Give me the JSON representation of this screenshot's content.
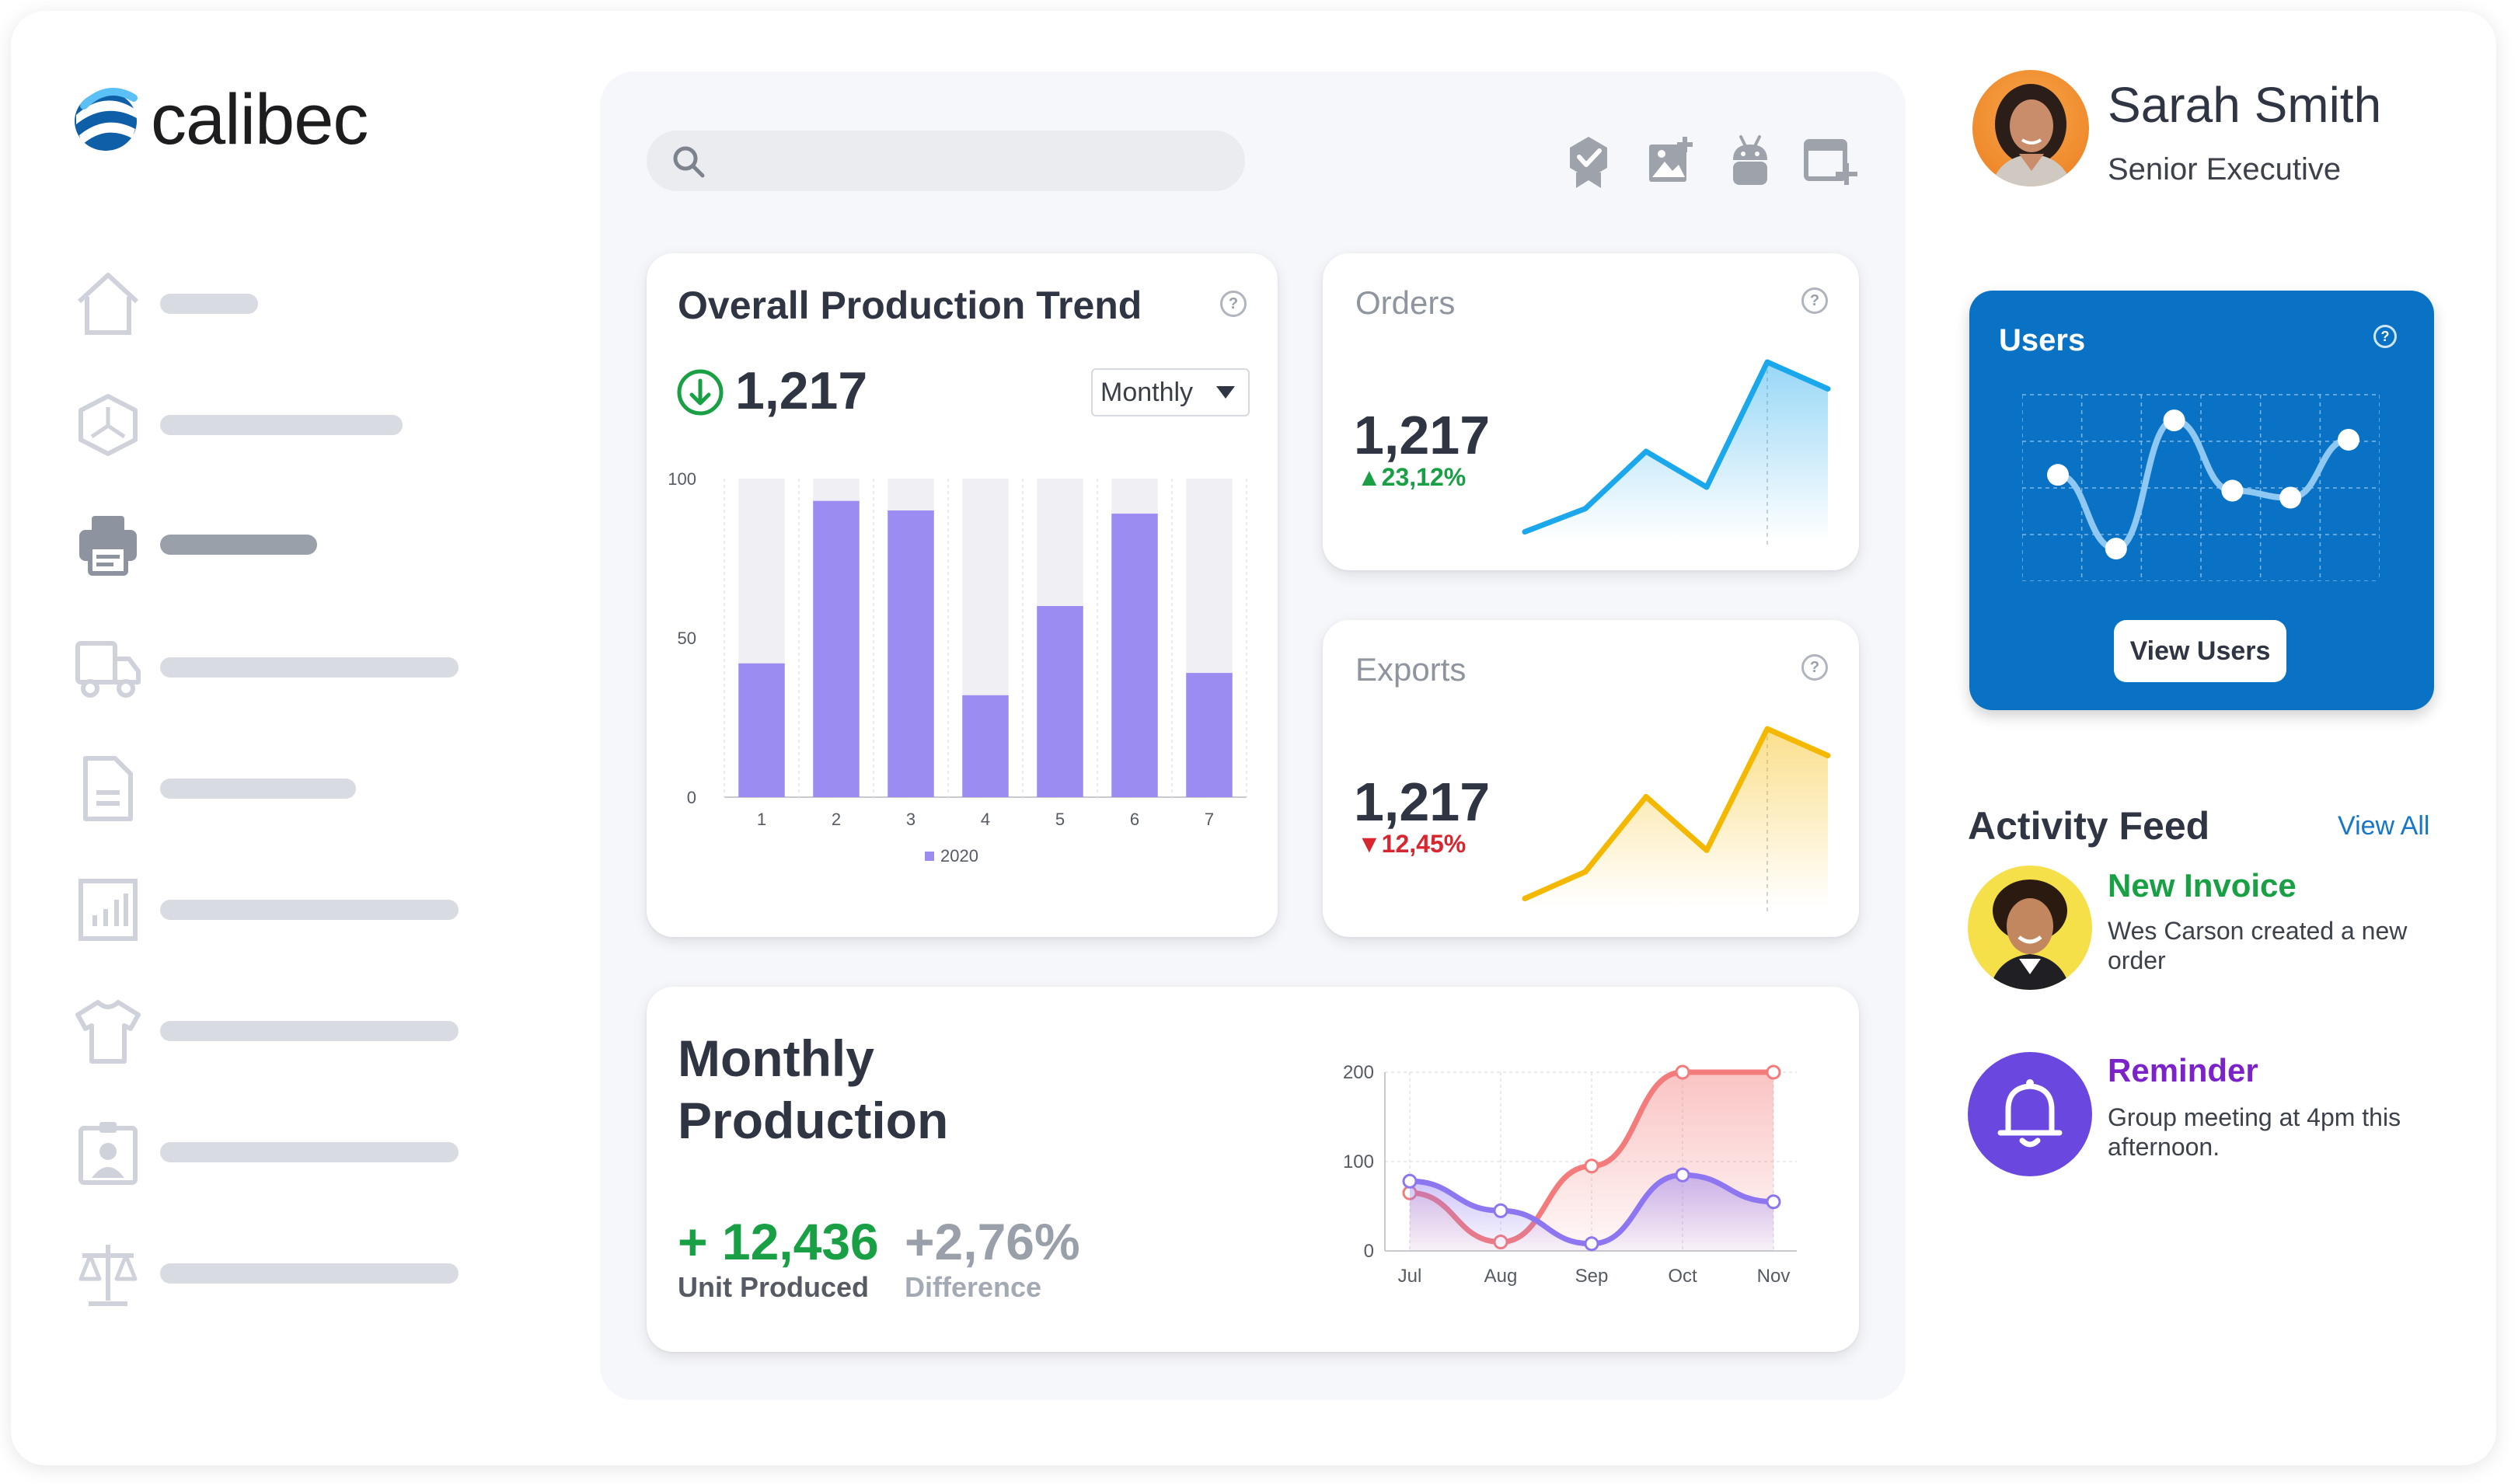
{
  "brand": {
    "name": "calibec",
    "logo_color": "#1677c8"
  },
  "sidebar": {
    "items": [
      {
        "icon": "home-icon",
        "active": false
      },
      {
        "icon": "cube-icon",
        "active": false
      },
      {
        "icon": "printer-icon",
        "active": true
      },
      {
        "icon": "truck-icon",
        "active": false
      },
      {
        "icon": "document-icon",
        "active": false
      },
      {
        "icon": "chart-icon",
        "active": false
      },
      {
        "icon": "shirt-icon",
        "active": false
      },
      {
        "icon": "badge-icon",
        "active": false
      },
      {
        "icon": "scale-icon",
        "active": false
      }
    ]
  },
  "toolbar": {
    "icons": [
      "award-icon",
      "add-image-icon",
      "android-icon",
      "add-window-icon"
    ]
  },
  "production_trend": {
    "title": "Overall Production Trend",
    "value": "1,217",
    "period": "Monthly",
    "help": "?",
    "chart_data": {
      "type": "bar",
      "categories": [
        "1",
        "2",
        "3",
        "4",
        "5",
        "6",
        "7"
      ],
      "values": [
        42,
        93,
        90,
        32,
        60,
        89,
        39
      ],
      "ylim": [
        0,
        100
      ],
      "yticks": [
        "0",
        "50",
        "100"
      ],
      "legend": "2020",
      "color": "#9b8cf2",
      "track_color": "#efeff4"
    }
  },
  "orders": {
    "title": "Orders",
    "value": "1,217",
    "change": "23,12%",
    "help": "?",
    "color": "#1aa7ec",
    "chart_data": {
      "type": "area",
      "x": [
        1,
        2,
        3,
        4,
        5,
        6
      ],
      "values": [
        5,
        18,
        50,
        30,
        100,
        85
      ],
      "ylim": [
        0,
        100
      ]
    }
  },
  "exports": {
    "title": "Exports",
    "value": "1,217",
    "change": "12,45%",
    "help": "?",
    "color": "#f5b800",
    "chart_data": {
      "type": "area",
      "x": [
        1,
        2,
        3,
        4,
        5,
        6
      ],
      "values": [
        5,
        20,
        62,
        32,
        100,
        85
      ],
      "ylim": [
        0,
        100
      ]
    }
  },
  "users": {
    "title": "Users",
    "help": "?",
    "button": "View Users",
    "bg_color": "#0a72c4",
    "chart_data": {
      "type": "line",
      "x": [
        1,
        2,
        3,
        4,
        5,
        6
      ],
      "values": [
        57,
        15,
        88,
        48,
        44,
        77
      ],
      "ylim": [
        0,
        100
      ]
    }
  },
  "monthly_production": {
    "title_line1": "Monthly",
    "title_line2": "Production",
    "units_value": "+ 12,436",
    "units_label": "Unit Produced",
    "diff_value": "+2,76%",
    "diff_label": "Difference",
    "chart_data": {
      "type": "line",
      "categories": [
        "Jul",
        "Aug",
        "Sep",
        "Oct",
        "Nov"
      ],
      "yticks": [
        "0",
        "100",
        "200"
      ],
      "ylim": [
        0,
        200
      ],
      "series": [
        {
          "name": "series-red",
          "color": "#f47b7b",
          "values": [
            65,
            10,
            95,
            200,
            200
          ]
        },
        {
          "name": "series-purple",
          "color": "#8d76f0",
          "values": [
            78,
            45,
            8,
            85,
            55
          ]
        }
      ]
    }
  },
  "profile": {
    "name": "Sarah Smith",
    "role": "Senior Executive"
  },
  "activity_feed": {
    "title": "Activity Feed",
    "view_all": "View All",
    "items": [
      {
        "title": "New Invoice",
        "text_line1": "Wes Carson created a new",
        "text_line2": "order",
        "title_color": "#19a045"
      },
      {
        "title": "Reminder",
        "text_line1": "Group meeting at 4pm this",
        "text_line2": "afternoon.",
        "title_color": "#7b22c9"
      }
    ]
  }
}
